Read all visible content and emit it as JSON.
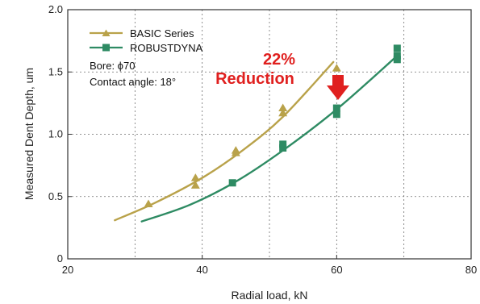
{
  "chart_data": {
    "type": "scatter",
    "title": "",
    "xlabel": "Radial load, kN",
    "ylabel": "Measured Dent Depth, um",
    "xlim": [
      20,
      80
    ],
    "ylim": [
      0,
      2.0
    ],
    "x_ticks": [
      "20",
      "40",
      "60",
      "80"
    ],
    "y_ticks": [
      "0",
      "0.5",
      "1.0",
      "1.5",
      "2.0"
    ],
    "grid": true,
    "legend_position": "top-left",
    "series": [
      {
        "name": "BASIC Series",
        "color": "#b9a24a",
        "marker": "triangle",
        "points": [
          {
            "x": 32,
            "y": 0.44
          },
          {
            "x": 39,
            "y": 0.65
          },
          {
            "x": 39,
            "y": 0.59
          },
          {
            "x": 45,
            "y": 0.87
          },
          {
            "x": 45,
            "y": 0.85
          },
          {
            "x": 52,
            "y": 1.21
          },
          {
            "x": 52,
            "y": 1.17
          },
          {
            "x": 60,
            "y": 1.53
          }
        ],
        "fit": [
          {
            "x": 27,
            "y": 0.31
          },
          {
            "x": 33,
            "y": 0.45
          },
          {
            "x": 40,
            "y": 0.65
          },
          {
            "x": 46,
            "y": 0.87
          },
          {
            "x": 52,
            "y": 1.14
          },
          {
            "x": 59.5,
            "y": 1.58
          }
        ]
      },
      {
        "name": "ROBUSTDYNA",
        "color": "#2e8b63",
        "marker": "square",
        "points": [
          {
            "x": 44.5,
            "y": 0.61
          },
          {
            "x": 52,
            "y": 0.92
          },
          {
            "x": 52,
            "y": 0.89
          },
          {
            "x": 60,
            "y": 1.21
          },
          {
            "x": 60,
            "y": 1.16
          },
          {
            "x": 69,
            "y": 1.69
          },
          {
            "x": 69,
            "y": 1.63
          },
          {
            "x": 69,
            "y": 1.6
          }
        ],
        "fit": [
          {
            "x": 31,
            "y": 0.3
          },
          {
            "x": 38,
            "y": 0.43
          },
          {
            "x": 45,
            "y": 0.62
          },
          {
            "x": 52,
            "y": 0.87
          },
          {
            "x": 60,
            "y": 1.2
          },
          {
            "x": 69,
            "y": 1.63
          }
        ]
      }
    ],
    "annotations": {
      "bore_note": "Bore: ϕ70",
      "angle_note": "Contact angle: 18°",
      "reduction_percent": "22%",
      "reduction_word": "Reduction",
      "reduction_color": "#e0201f"
    }
  }
}
